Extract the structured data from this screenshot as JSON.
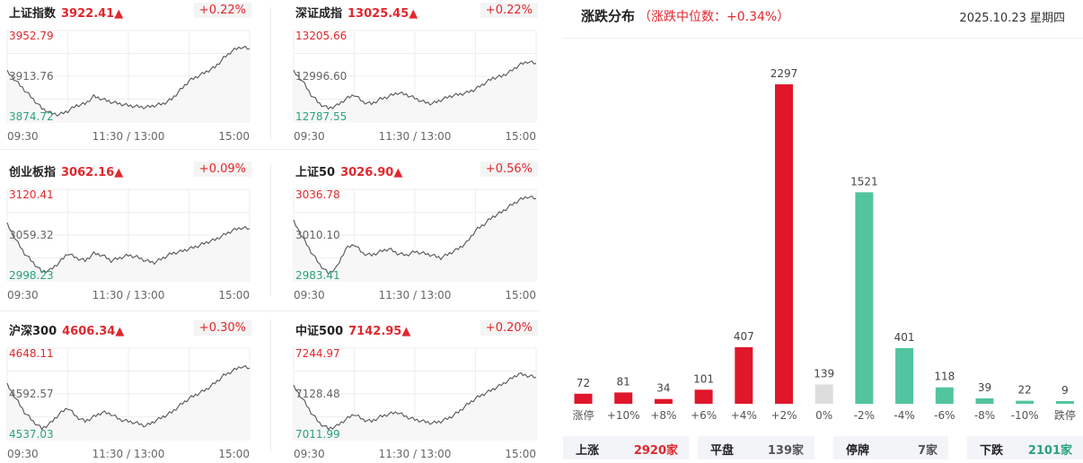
{
  "indices": [
    {
      "name": "上证指数",
      "price": "3922.41",
      "change": "+0.22%",
      "arrow": "▲",
      "y_high": "3952.79",
      "y_mid": "3913.76",
      "y_low": "3874.72",
      "t_start": "09:30",
      "t_mid": "11:30 / 13:00",
      "t_end": "15:00",
      "color": "#e0282d"
    },
    {
      "name": "深证成指",
      "price": "13025.45",
      "change": "+0.22%",
      "arrow": "▲",
      "y_high": "13205.66",
      "y_mid": "12996.60",
      "y_low": "12787.55",
      "t_start": "09:30",
      "t_mid": "11:30 / 13:00",
      "t_end": "15:00",
      "color": "#e0282d"
    },
    {
      "name": "创业板指",
      "price": "3062.16",
      "change": "+0.09%",
      "arrow": "▲",
      "y_high": "3120.41",
      "y_mid": "3059.32",
      "y_low": "2998.23",
      "t_start": "09:30",
      "t_mid": "11:30 / 13:00",
      "t_end": "15:00",
      "color": "#e0282d"
    },
    {
      "name": "上证50",
      "price": "3026.90",
      "change": "+0.56%",
      "arrow": "▲",
      "y_high": "3036.78",
      "y_mid": "3010.10",
      "y_low": "2983.41",
      "t_start": "09:30",
      "t_mid": "11:30 / 13:00",
      "t_end": "15:00",
      "color": "#e0282d"
    },
    {
      "name": "沪深300",
      "price": "4606.34",
      "change": "+0.30%",
      "arrow": "▲",
      "y_high": "4648.11",
      "y_mid": "4592.57",
      "y_low": "4537.03",
      "t_start": "09:30",
      "t_mid": "11:30 / 13:00",
      "t_end": "15:00",
      "color": "#e0282d"
    },
    {
      "name": "中证500",
      "price": "7142.95",
      "change": "+0.20%",
      "arrow": "▲",
      "y_high": "7244.97",
      "y_mid": "7128.48",
      "y_low": "7011.99",
      "t_start": "09:30",
      "t_mid": "11:30 / 13:00",
      "t_end": "15:00",
      "color": "#e0282d"
    }
  ],
  "distribution": {
    "title": "涨跌分布",
    "subtitle": "（涨跌中位数：+0.34%）",
    "date": "2025.10.23 星期四"
  },
  "chart_data": {
    "type": "bar",
    "categories": [
      "涨停",
      "+10%",
      "+8%",
      "+6%",
      "+4%",
      "+2%",
      "0%",
      "-2%",
      "-4%",
      "-6%",
      "-8%",
      "-10%",
      "跌停"
    ],
    "values": [
      72,
      81,
      34,
      101,
      407,
      2297,
      139,
      1521,
      401,
      118,
      39,
      22,
      9
    ],
    "colors": [
      "#e0162b",
      "#e0162b",
      "#e0162b",
      "#e0162b",
      "#e0162b",
      "#e0162b",
      "#dddddd",
      "#52c49f",
      "#52c49f",
      "#52c49f",
      "#52c49f",
      "#52c49f",
      "#52c49f"
    ],
    "ylim": [
      0,
      2297
    ]
  },
  "summary": [
    {
      "label": "上涨",
      "value": "2920家",
      "color": "#e0282d"
    },
    {
      "label": "平盘",
      "value": "139家",
      "color": "#555555"
    },
    {
      "label": "停牌",
      "value": "7家",
      "color": "#555555"
    },
    {
      "label": "下跌",
      "value": "2101家",
      "color": "#2aa37a"
    }
  ]
}
